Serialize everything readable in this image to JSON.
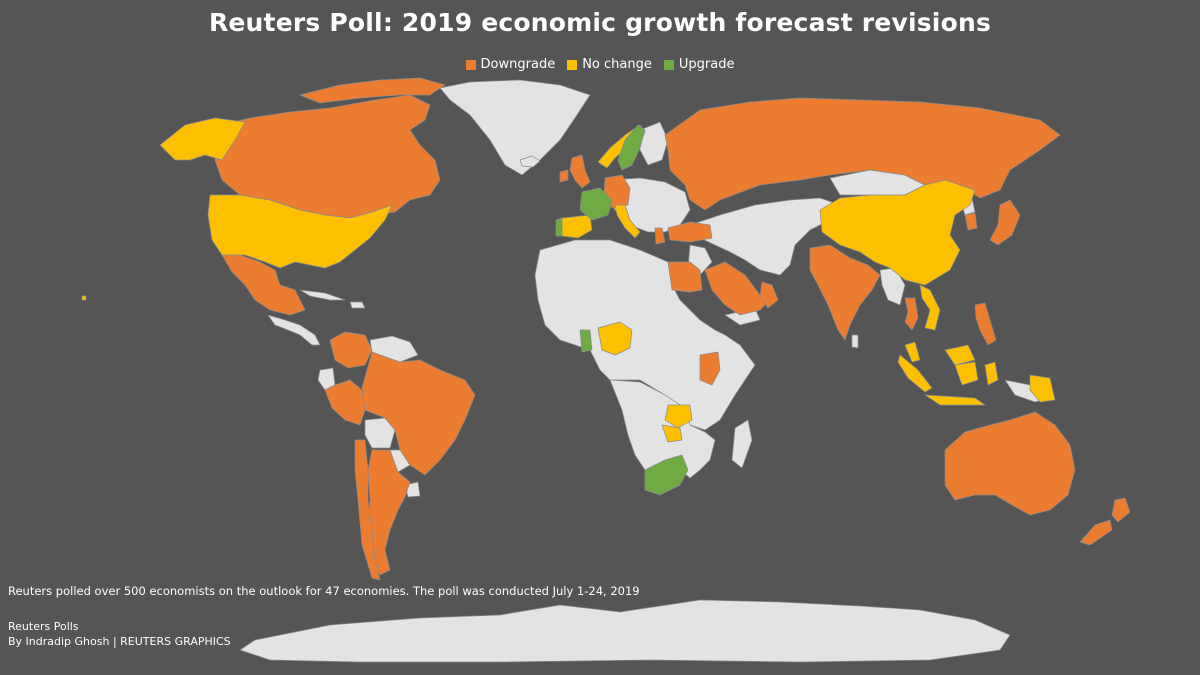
{
  "title": "Reuters Poll: 2019 economic growth forecast revisions",
  "legend": {
    "downgrade": "Downgrade",
    "no_change": "No change",
    "upgrade": "Upgrade"
  },
  "colors": {
    "background": "#555555",
    "land_neutral": "#e3e3e3",
    "border": "#8a8a8a",
    "downgrade": "#ec7c30",
    "no_change": "#fdc000",
    "upgrade": "#6eab43"
  },
  "footer": {
    "note": "Reuters polled over 500 economists on the outlook for 47 economies. The poll was conducted July 1-24, 2019",
    "source": "Reuters Polls",
    "byline": "By Indradip Ghosh | REUTERS GRAPHICS"
  }
}
